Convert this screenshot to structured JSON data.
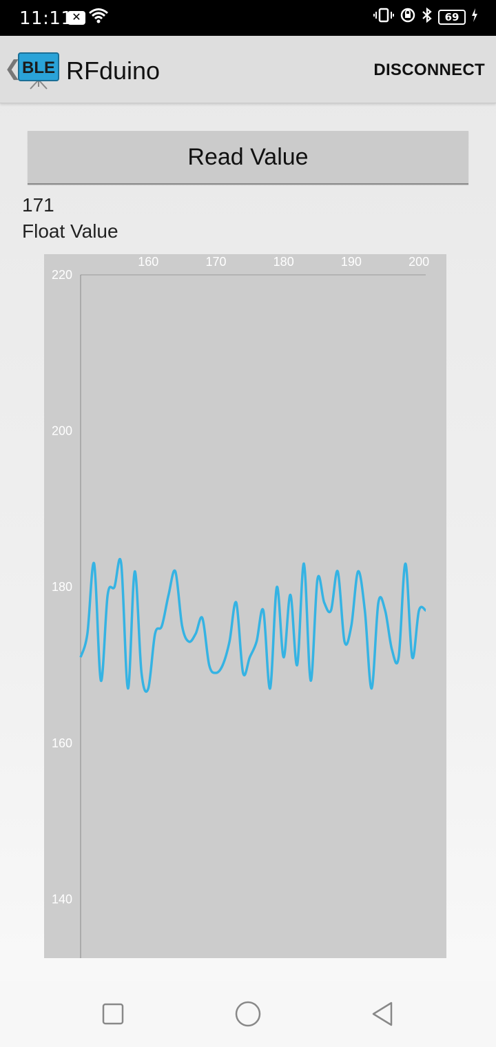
{
  "status_bar": {
    "time": "11:11",
    "battery": "69"
  },
  "app_bar": {
    "title": "RFduino",
    "logo_text": "BLE",
    "disconnect_label": "DISCONNECT"
  },
  "main": {
    "read_button_label": "Read Value",
    "value": "171",
    "value_label": "Float Value"
  },
  "colors": {
    "line": "#35b3e3",
    "chart_bg": "#cccccc"
  },
  "chart_data": {
    "type": "line",
    "title": "",
    "xlabel": "",
    "ylabel": "",
    "xlim": [
      150,
      201
    ],
    "ylim": [
      133,
      220
    ],
    "x_ticks": [
      "160",
      "170",
      "180",
      "190",
      "200"
    ],
    "y_ticks": [
      "220",
      "200",
      "180",
      "160",
      "140"
    ],
    "series": [
      {
        "x": [
          150,
          151,
          152,
          153,
          154,
          155,
          156,
          157,
          158,
          159,
          160,
          161,
          162,
          163,
          164,
          165,
          166,
          167,
          168,
          169,
          170,
          171,
          172,
          173,
          174,
          175,
          176,
          177,
          178,
          179,
          180,
          181,
          182,
          183,
          184,
          185,
          186,
          187,
          188,
          189,
          190,
          191,
          192,
          193,
          194,
          195,
          196,
          197,
          198,
          199,
          200,
          201
        ],
        "values": [
          171,
          174,
          183,
          168,
          179,
          180,
          183,
          167,
          182,
          169,
          167,
          174,
          175,
          179,
          182,
          175,
          173,
          174,
          176,
          170,
          169,
          170,
          173,
          178,
          169,
          171,
          173,
          177,
          167,
          180,
          171,
          179,
          170,
          183,
          168,
          181,
          178,
          177,
          182,
          173,
          175,
          182,
          177,
          167,
          178,
          177,
          172,
          171,
          183,
          171,
          177,
          177
        ]
      }
    ]
  }
}
